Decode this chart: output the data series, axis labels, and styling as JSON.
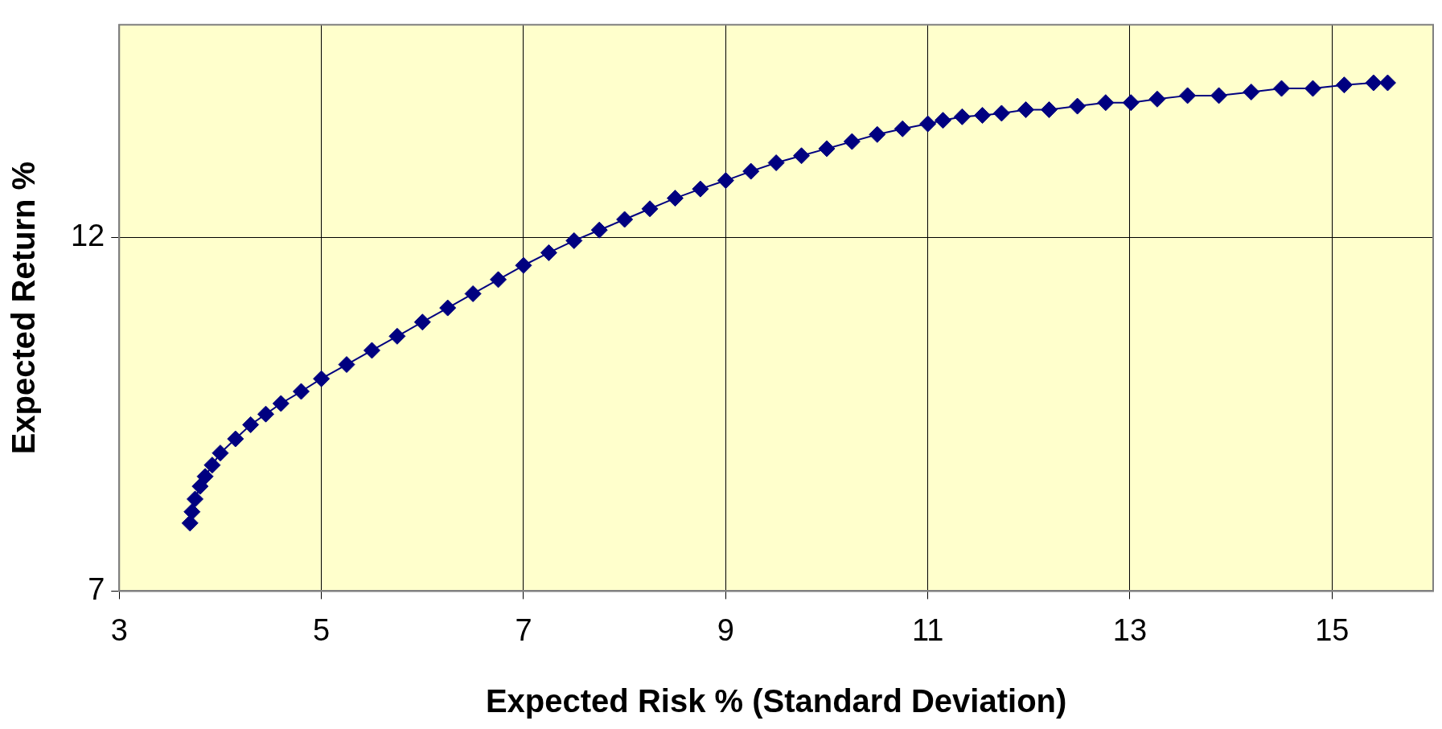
{
  "chart_data": {
    "type": "line",
    "xlabel": "Expected Risk % (Standard Deviation)",
    "ylabel": "Expected Return %",
    "xlim": [
      3,
      16
    ],
    "ylim": [
      7,
      15
    ],
    "xticks": [
      3,
      5,
      7,
      9,
      11,
      13,
      15
    ],
    "yticks": [
      7,
      12
    ],
    "grid": true,
    "legend": false,
    "marker": "diamond",
    "line_style": "solid",
    "series": [
      {
        "color": "#000080",
        "x": [
          3.7,
          3.72,
          3.75,
          3.8,
          3.85,
          3.92,
          4.0,
          4.15,
          4.3,
          4.45,
          4.6,
          4.8,
          5.0,
          5.25,
          5.5,
          5.75,
          6.0,
          6.25,
          6.5,
          6.75,
          7.0,
          7.25,
          7.5,
          7.75,
          8.0,
          8.25,
          8.5,
          8.75,
          9.0,
          9.25,
          9.5,
          9.75,
          10.0,
          10.25,
          10.5,
          10.75,
          11.0,
          11.15,
          11.34,
          11.54,
          11.73,
          11.97,
          12.2,
          12.48,
          12.76,
          13.01,
          13.27,
          13.57,
          13.88,
          14.2,
          14.5,
          14.81,
          15.12,
          15.41,
          15.55
        ],
        "values": [
          7.96,
          8.12,
          8.3,
          8.48,
          8.62,
          8.78,
          8.95,
          9.15,
          9.35,
          9.5,
          9.65,
          9.82,
          10.0,
          10.2,
          10.4,
          10.6,
          10.8,
          11.0,
          11.2,
          11.4,
          11.6,
          11.78,
          11.95,
          12.1,
          12.25,
          12.4,
          12.55,
          12.68,
          12.8,
          12.93,
          13.05,
          13.15,
          13.25,
          13.35,
          13.45,
          13.53,
          13.6,
          13.65,
          13.7,
          13.72,
          13.75,
          13.8,
          13.8,
          13.85,
          13.9,
          13.9,
          13.95,
          14.0,
          14.0,
          14.05,
          14.1,
          14.1,
          14.15,
          14.18,
          14.18
        ]
      }
    ]
  }
}
